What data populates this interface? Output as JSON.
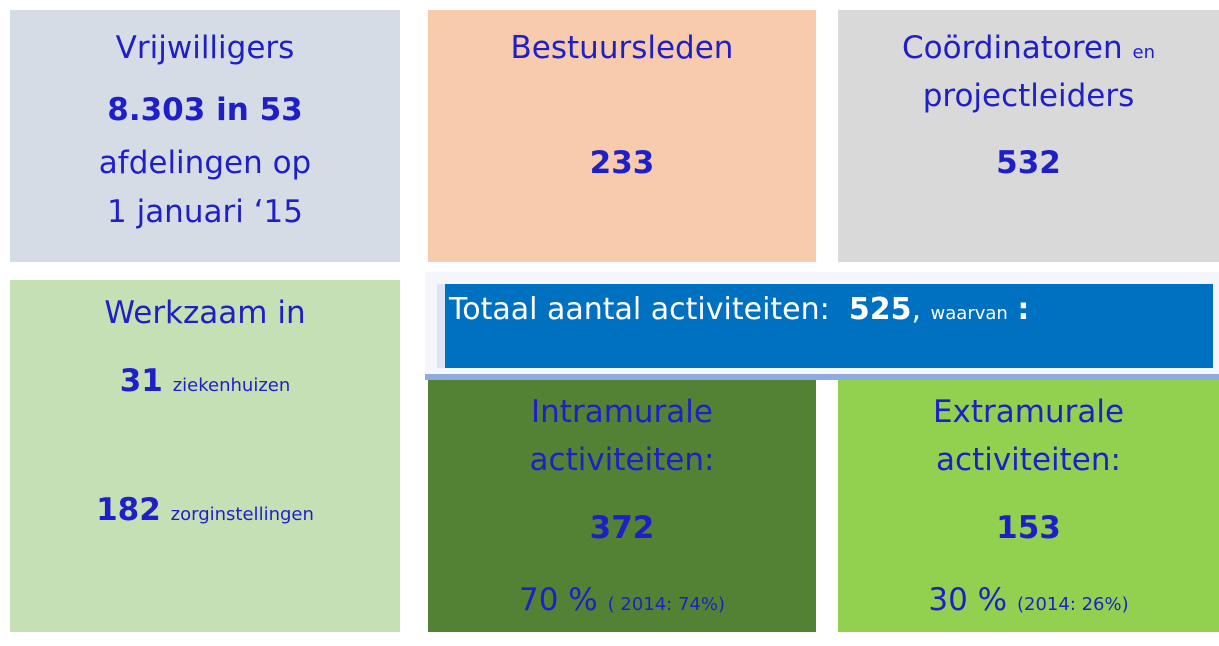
{
  "volunteers": {
    "title": "Vrijwilligers",
    "count": "8.303 in 53",
    "line2": "afdelingen op",
    "line3": "1 januari ‘15"
  },
  "board": {
    "title": "Bestuursleden",
    "value": 233
  },
  "coordinators": {
    "title": "Coördinatoren",
    "small": "en",
    "title2": "projectleiders",
    "value": 532
  },
  "work": {
    "title": "Werkzaam in",
    "hospitals": {
      "value": 31,
      "label": "ziekenhuizen"
    },
    "institutions": {
      "value": 182,
      "label": "zorginstellingen"
    }
  },
  "total": {
    "label": "Totaal aantal activiteiten:",
    "value": 525,
    "comma": ",",
    "small": "waarvan",
    "end": ":"
  },
  "intramural": {
    "title": "Intramurale",
    "title2": "activiteiten:",
    "value": 372,
    "percent": "70 %",
    "previous": "( 2014: 74%)"
  },
  "extramural": {
    "title": "Extramurale",
    "title2": "activiteiten:",
    "value": 153,
    "percent": "30 %",
    "previous": "(2014: 26%)"
  }
}
